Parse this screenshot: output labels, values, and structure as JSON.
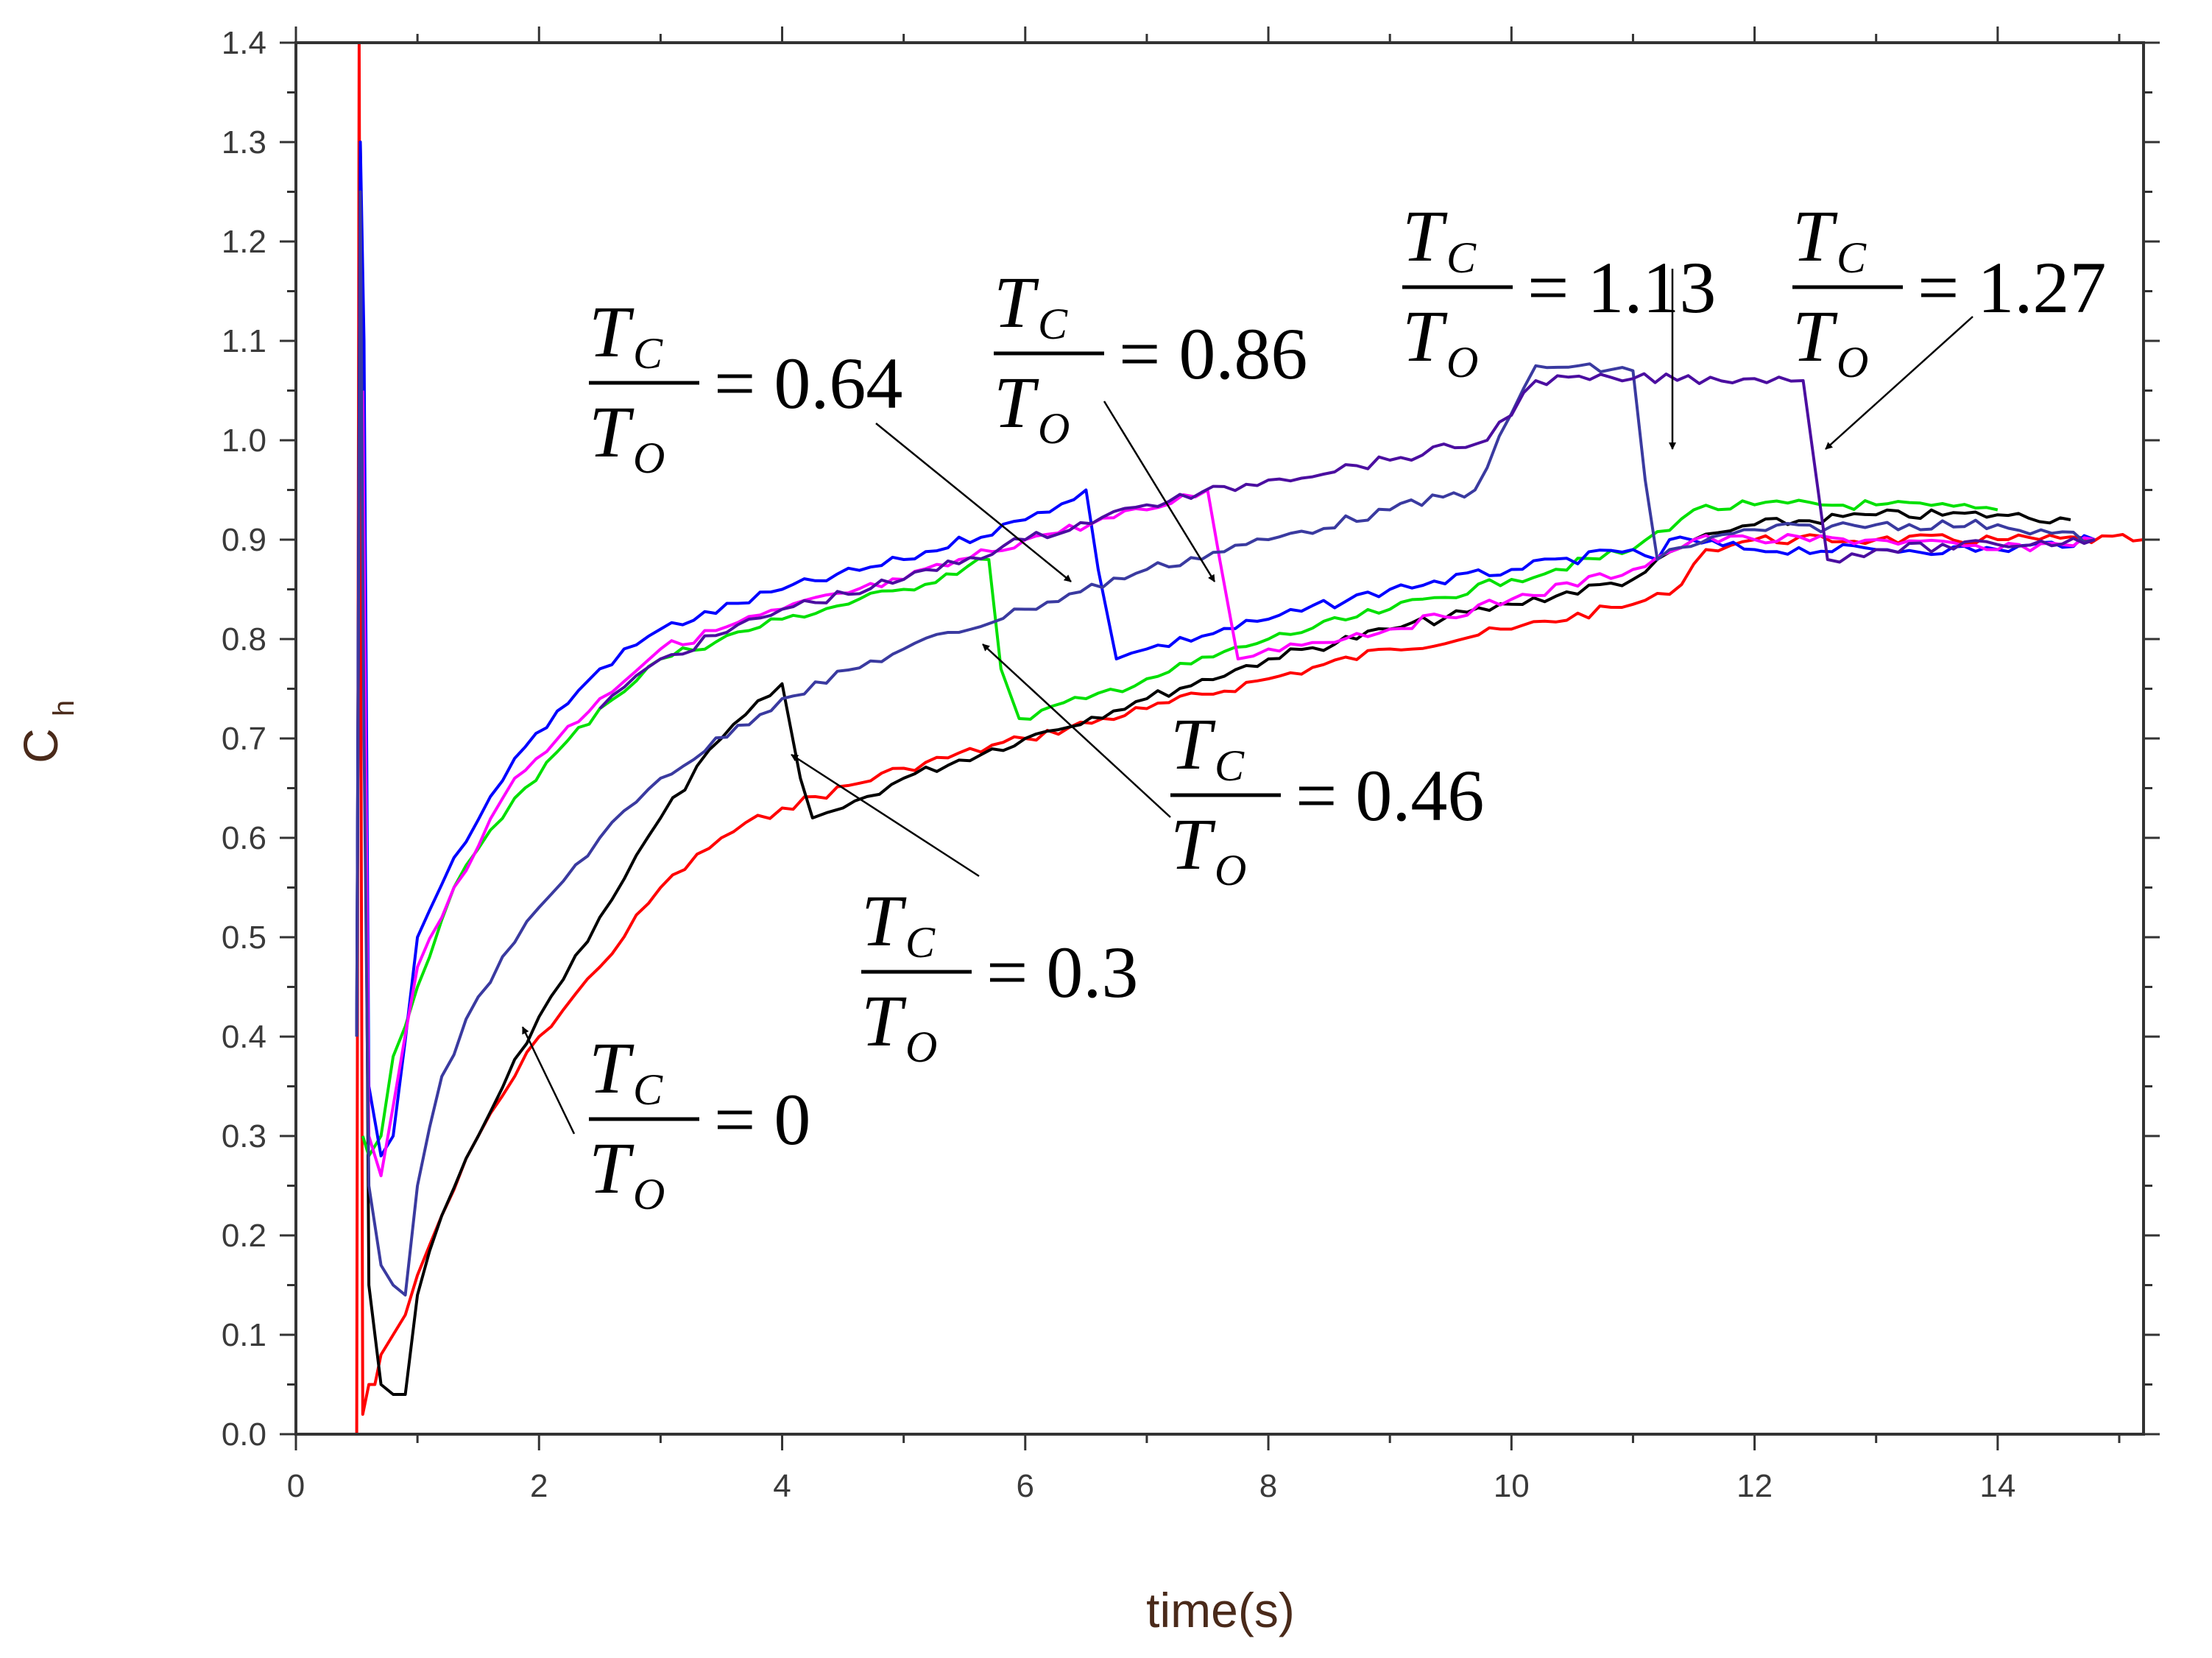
{
  "chart_data": {
    "type": "line",
    "xlabel": "time(s)",
    "ylabel": "C",
    "ylabel_subscript": "h",
    "xlim": [
      0,
      15.2
    ],
    "ylim": [
      0.0,
      1.4
    ],
    "x_ticks": [
      "0",
      "2",
      "4",
      "6",
      "8",
      "10",
      "12",
      "14"
    ],
    "y_ticks": [
      "0.0",
      "0.1",
      "0.2",
      "0.3",
      "0.4",
      "0.5",
      "0.6",
      "0.7",
      "0.8",
      "0.9",
      "1.0",
      "1.1",
      "1.2",
      "1.3",
      "1.4"
    ],
    "series": [
      {
        "name": "Tc/To = 0",
        "color": "#ff0000",
        "x": [
          0.5,
          0.52,
          0.55,
          0.6,
          0.65,
          0.7,
          0.8,
          0.9,
          1.0,
          1.2,
          1.5,
          2.0,
          2.5,
          3.0,
          3.5,
          4.0,
          5.0,
          6.0,
          7.0,
          8.0,
          9.0,
          10.0,
          11.0,
          11.3,
          11.6,
          12.0,
          13.0,
          14.0,
          15.2
        ],
        "y": [
          0.0,
          1.4,
          0.02,
          0.05,
          0.05,
          0.08,
          0.1,
          0.12,
          0.16,
          0.22,
          0.3,
          0.4,
          0.47,
          0.55,
          0.6,
          0.63,
          0.67,
          0.7,
          0.73,
          0.76,
          0.79,
          0.81,
          0.835,
          0.845,
          0.89,
          0.9,
          0.9,
          0.9,
          0.9
        ]
      },
      {
        "name": "Tc/To = 0.3",
        "color": "#000000",
        "x": [
          0.5,
          0.53,
          0.56,
          0.6,
          0.7,
          0.8,
          0.9,
          1.0,
          1.2,
          1.5,
          2.0,
          2.5,
          3.0,
          3.5,
          4.0,
          4.15,
          4.25,
          4.5,
          5.0,
          6.0,
          7.0,
          8.0,
          9.0,
          10.0,
          11.0,
          11.5,
          12.0,
          13.0,
          14.0,
          14.6
        ],
        "y": [
          0.4,
          1.3,
          0.9,
          0.15,
          0.05,
          0.04,
          0.04,
          0.14,
          0.22,
          0.3,
          0.42,
          0.52,
          0.62,
          0.7,
          0.755,
          0.66,
          0.62,
          0.63,
          0.66,
          0.7,
          0.74,
          0.78,
          0.81,
          0.835,
          0.86,
          0.9,
          0.915,
          0.925,
          0.925,
          0.92
        ]
      },
      {
        "name": "Tc/To = 0.46",
        "color": "#00e000",
        "x": [
          0.55,
          0.6,
          0.7,
          0.8,
          1.0,
          1.3,
          1.8,
          2.5,
          3.0,
          4.0,
          5.0,
          5.7,
          5.8,
          5.95,
          6.5,
          7.0,
          8.0,
          9.0,
          10.0,
          11.0,
          11.5,
          12.0,
          13.0,
          14.0
        ],
        "y": [
          0.3,
          0.28,
          0.3,
          0.38,
          0.45,
          0.55,
          0.64,
          0.73,
          0.78,
          0.82,
          0.85,
          0.88,
          0.77,
          0.72,
          0.74,
          0.76,
          0.8,
          0.83,
          0.86,
          0.89,
          0.93,
          0.935,
          0.935,
          0.93
        ]
      },
      {
        "name": "Tc/To = 0.64",
        "color": "#0000ff",
        "x": [
          0.5,
          0.53,
          0.56,
          0.6,
          0.7,
          0.8,
          1.0,
          1.3,
          1.8,
          2.5,
          3.0,
          4.0,
          5.0,
          6.0,
          6.5,
          6.6,
          6.75,
          7.0,
          8.0,
          9.0,
          10.0,
          11.0,
          11.2,
          11.3,
          12.0,
          13.0,
          14.0,
          14.8
        ],
        "y": [
          0.4,
          1.3,
          1.1,
          0.35,
          0.28,
          0.3,
          0.5,
          0.58,
          0.68,
          0.77,
          0.81,
          0.85,
          0.88,
          0.92,
          0.95,
          0.87,
          0.78,
          0.79,
          0.82,
          0.85,
          0.87,
          0.89,
          0.88,
          0.9,
          0.89,
          0.89,
          0.89,
          0.9
        ]
      },
      {
        "name": "Tc/To = 0.86",
        "color": "#ff00ff",
        "x": [
          0.55,
          0.6,
          0.7,
          0.8,
          1.0,
          1.3,
          1.8,
          2.5,
          3.0,
          4.0,
          5.0,
          6.0,
          7.0,
          7.5,
          7.6,
          7.75,
          8.0,
          9.0,
          10.0,
          11.0,
          11.5,
          12.0,
          13.0,
          14.0,
          14.8
        ],
        "y": [
          1.05,
          0.3,
          0.26,
          0.33,
          0.47,
          0.55,
          0.66,
          0.74,
          0.79,
          0.83,
          0.86,
          0.9,
          0.93,
          0.95,
          0.88,
          0.78,
          0.79,
          0.81,
          0.84,
          0.87,
          0.9,
          0.9,
          0.9,
          0.89,
          0.9
        ]
      },
      {
        "name": "Tc/To = 1.13",
        "color": "#3a3aa0",
        "x": [
          0.5,
          0.53,
          0.56,
          0.6,
          0.7,
          0.8,
          0.9,
          1.0,
          1.2,
          1.5,
          2.0,
          2.5,
          3.0,
          4.0,
          5.0,
          6.0,
          7.0,
          8.0,
          9.0,
          9.7,
          10.2,
          11.0,
          11.1,
          11.2,
          11.3,
          12.0,
          13.0,
          14.0,
          14.8
        ],
        "y": [
          0.4,
          1.25,
          0.7,
          0.25,
          0.17,
          0.15,
          0.14,
          0.25,
          0.36,
          0.44,
          0.53,
          0.6,
          0.66,
          0.74,
          0.79,
          0.83,
          0.87,
          0.9,
          0.93,
          0.95,
          1.075,
          1.07,
          0.96,
          0.88,
          0.89,
          0.91,
          0.915,
          0.915,
          0.9
        ]
      },
      {
        "name": "Tc/To = 1.27",
        "color": "#4b0ea0",
        "x": [
          2.5,
          3.0,
          4.0,
          5.0,
          6.0,
          7.0,
          8.0,
          9.0,
          9.8,
          10.2,
          11.0,
          12.0,
          12.4,
          12.5,
          12.6,
          13.0,
          14.0,
          14.8
        ],
        "y": [
          0.73,
          0.78,
          0.83,
          0.86,
          0.9,
          0.935,
          0.96,
          0.98,
          1.0,
          1.06,
          1.062,
          1.062,
          1.06,
          0.97,
          0.88,
          0.89,
          0.895,
          0.9
        ]
      }
    ],
    "annotations": [
      {
        "label": "Tc/To = 0",
        "value": "= 0",
        "T": "T",
        "C": "C",
        "O": "O"
      },
      {
        "label": "Tc/To = 0.3",
        "value": "= 0.3",
        "T": "T",
        "C": "C",
        "O": "O"
      },
      {
        "label": "Tc/To = 0.46",
        "value": "= 0.46",
        "T": "T",
        "C": "C",
        "O": "O"
      },
      {
        "label": "Tc/To = 0.64",
        "value": "= 0.64",
        "T": "T",
        "C": "C",
        "O": "O"
      },
      {
        "label": "Tc/To = 0.86",
        "value": "= 0.86",
        "T": "T",
        "C": "C",
        "O": "O"
      },
      {
        "label": "Tc/To = 1.13",
        "value": "= 1.13",
        "T": "T",
        "C": "C",
        "O": "O"
      },
      {
        "label": "Tc/To = 1.27",
        "value": "= 1.27",
        "T": "T",
        "C": "C",
        "O": "O"
      }
    ]
  }
}
